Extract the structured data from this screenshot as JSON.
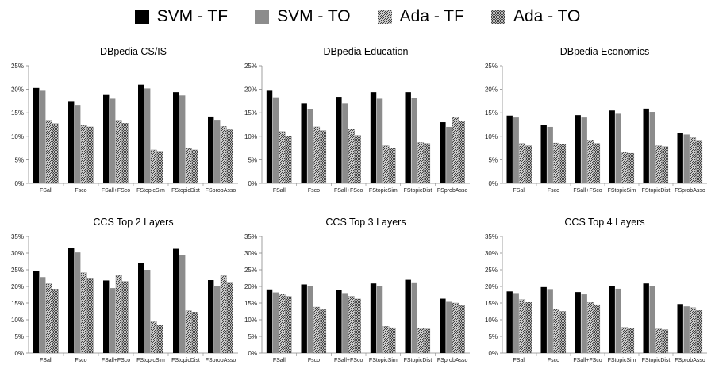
{
  "legend": [
    {
      "name": "SVM - TF",
      "style": "solid-black"
    },
    {
      "name": "SVM - TO",
      "style": "solid-gray"
    },
    {
      "name": "Ada - TF",
      "style": "hatch-diagonal"
    },
    {
      "name": "Ada - TO",
      "style": "hatch-checker"
    }
  ],
  "colors": {
    "svm_tf": "#000000",
    "svm_to": "#8c8c8c",
    "hatch_dark": "#3a3a3a",
    "axis": "#888888"
  },
  "chart_data": [
    {
      "type": "bar",
      "title": "DBpedia CS/IS",
      "categories": [
        "FSall",
        "Fsco",
        "FSall+FSco",
        "FStopicSim",
        "FStopicDist",
        "FSprobAsso"
      ],
      "yticks": [
        "0%",
        "5%",
        "10%",
        "15%",
        "20%",
        "25%"
      ],
      "ylim": [
        0,
        25
      ],
      "series": [
        {
          "name": "SVM - TF",
          "values": [
            20.3,
            17.5,
            18.8,
            21.0,
            19.4,
            14.2
          ]
        },
        {
          "name": "SVM - TO",
          "values": [
            19.7,
            16.7,
            18.0,
            20.2,
            18.7,
            13.5
          ]
        },
        {
          "name": "Ada - TF",
          "values": [
            13.4,
            12.3,
            13.4,
            7.1,
            7.4,
            12.1
          ]
        },
        {
          "name": "Ada - TO",
          "values": [
            12.7,
            12.0,
            12.8,
            6.8,
            7.1,
            11.4
          ]
        }
      ]
    },
    {
      "type": "bar",
      "title": "DBpedia Education",
      "categories": [
        "FSall",
        "Fsco",
        "FSall+FSco",
        "FStopicSim",
        "FStopicDist",
        "FSprobAsso"
      ],
      "yticks": [
        "0%",
        "5%",
        "10%",
        "15%",
        "20%",
        "25%"
      ],
      "ylim": [
        0,
        25
      ],
      "series": [
        {
          "name": "SVM - TF",
          "values": [
            19.7,
            17.0,
            18.4,
            19.4,
            19.4,
            13.0
          ]
        },
        {
          "name": "SVM - TO",
          "values": [
            18.3,
            15.8,
            17.0,
            18.0,
            18.2,
            12.0
          ]
        },
        {
          "name": "Ada - TF",
          "values": [
            11.0,
            12.0,
            11.5,
            8.0,
            8.7,
            14.1
          ]
        },
        {
          "name": "Ada - TO",
          "values": [
            10.0,
            11.2,
            10.2,
            7.5,
            8.5,
            13.2
          ]
        }
      ]
    },
    {
      "type": "bar",
      "title": "DBpedia Economics",
      "categories": [
        "FSall",
        "Fsco",
        "FSall+FSco",
        "FStopicSim",
        "FStopicDist",
        "FSprobAsso"
      ],
      "yticks": [
        "0%",
        "5%",
        "10%",
        "15%",
        "20%",
        "25%"
      ],
      "ylim": [
        0,
        25
      ],
      "series": [
        {
          "name": "SVM - TF",
          "values": [
            14.4,
            12.5,
            14.5,
            15.5,
            15.9,
            10.8
          ]
        },
        {
          "name": "SVM - TO",
          "values": [
            14.0,
            12.0,
            14.0,
            14.8,
            15.2,
            10.4
          ]
        },
        {
          "name": "Ada - TF",
          "values": [
            8.5,
            8.6,
            9.2,
            6.6,
            8.0,
            9.7
          ]
        },
        {
          "name": "Ada - TO",
          "values": [
            8.0,
            8.3,
            8.5,
            6.4,
            7.8,
            9.0
          ]
        }
      ]
    },
    {
      "type": "bar",
      "title": "CCS Top 2 Layers",
      "categories": [
        "FSall",
        "Fsco",
        "FSall+FSco",
        "FStopicSim",
        "FStopicDist",
        "FSprobAsso"
      ],
      "yticks": [
        "0%",
        "5%",
        "10%",
        "15%",
        "20%",
        "25%",
        "30%",
        "35%"
      ],
      "ylim": [
        0,
        35
      ],
      "series": [
        {
          "name": "SVM - TF",
          "values": [
            24.6,
            31.6,
            21.8,
            27.0,
            31.3,
            21.9
          ]
        },
        {
          "name": "SVM - TO",
          "values": [
            22.8,
            30.2,
            19.5,
            25.0,
            29.5,
            20.0
          ]
        },
        {
          "name": "Ada - TF",
          "values": [
            20.8,
            24.1,
            23.3,
            9.4,
            12.7,
            23.2
          ]
        },
        {
          "name": "Ada - TO",
          "values": [
            19.2,
            22.5,
            21.5,
            8.5,
            12.3,
            21.0
          ]
        }
      ]
    },
    {
      "type": "bar",
      "title": "CCS Top 3 Layers",
      "categories": [
        "FSall",
        "Fsco",
        "FSall+FSco",
        "FStopicSim",
        "FStopicDist",
        "FSprobAsso"
      ],
      "yticks": [
        "0%",
        "5%",
        "10%",
        "15%",
        "20%",
        "25%",
        "30%",
        "35%"
      ],
      "ylim": [
        0,
        35
      ],
      "series": [
        {
          "name": "SVM - TF",
          "values": [
            19.1,
            20.6,
            18.9,
            20.9,
            22.0,
            16.3
          ]
        },
        {
          "name": "SVM - TO",
          "values": [
            18.2,
            20.0,
            18.0,
            20.0,
            21.0,
            15.6
          ]
        },
        {
          "name": "Ada - TF",
          "values": [
            17.7,
            13.8,
            17.0,
            8.0,
            7.5,
            15.0
          ]
        },
        {
          "name": "Ada - TO",
          "values": [
            17.0,
            13.0,
            16.2,
            7.6,
            7.2,
            14.2
          ]
        }
      ]
    },
    {
      "type": "bar",
      "title": "CCS Top 4 Layers",
      "categories": [
        "FSall",
        "Fsco",
        "FSall+FSco",
        "FStopicSim",
        "FStopicDist",
        "FSprobAsso"
      ],
      "yticks": [
        "0%",
        "5%",
        "10%",
        "15%",
        "20%",
        "25%",
        "30%",
        "35%"
      ],
      "ylim": [
        0,
        35
      ],
      "series": [
        {
          "name": "SVM - TF",
          "values": [
            18.5,
            19.8,
            18.3,
            20.0,
            20.9,
            14.7
          ]
        },
        {
          "name": "SVM - TO",
          "values": [
            18.0,
            19.2,
            17.6,
            19.3,
            20.2,
            14.0
          ]
        },
        {
          "name": "Ada - TF",
          "values": [
            16.0,
            13.2,
            15.2,
            7.7,
            7.2,
            13.6
          ]
        },
        {
          "name": "Ada - TO",
          "values": [
            15.3,
            12.5,
            14.5,
            7.4,
            7.0,
            12.8
          ]
        }
      ]
    }
  ]
}
